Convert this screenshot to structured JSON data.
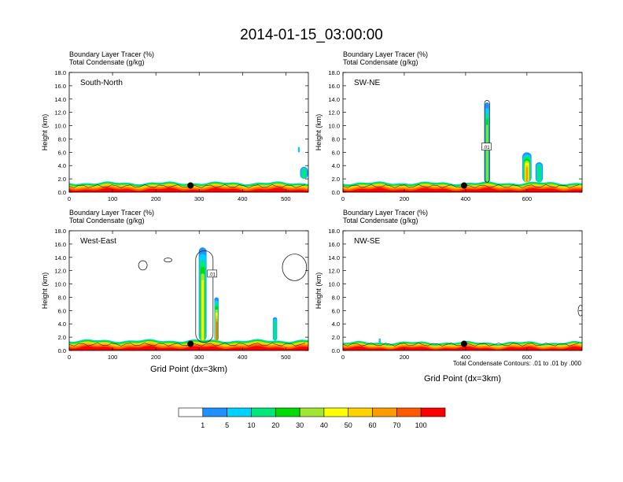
{
  "title": "2014-01-15_03:00:00",
  "panel_header_line1": "Boundary Layer Tracer   (%)",
  "panel_header_line2": "Total Condensate   (g/kg)",
  "ylabel": "Height (km)",
  "xlabel": "Grid Point (dx=3km)",
  "contour_note": "Total Condensate Contours: .01 to .01 by .000",
  "contour_label": ".01",
  "colors": [
    "#ffffff",
    "#1e90ff",
    "#00d2ff",
    "#00e87c",
    "#00dc00",
    "#a0e632",
    "#ffff00",
    "#ffd200",
    "#ff9b00",
    "#ff5a00",
    "#ff0000"
  ],
  "colorbar_labels": [
    "1",
    "5",
    "10",
    "20",
    "30",
    "40",
    "50",
    "60",
    "70",
    "100"
  ],
  "chart_data": [
    {
      "type": "heatmap",
      "name": "South-North",
      "xlim": [
        0,
        552
      ],
      "xticks": [
        0,
        100,
        200,
        300,
        400,
        500
      ],
      "ylim": [
        0,
        18
      ],
      "yticks": [
        "0.0",
        "2.0",
        "4.0",
        "6.0",
        "8.0",
        "10.0",
        "12.0",
        "14.0",
        "16.0",
        "18.0"
      ],
      "marker_x": 280,
      "pbl_top_km": 1.4,
      "plumes": [
        {
          "x": 542,
          "base": 2.0,
          "top": 3.8,
          "width": 18,
          "level": 3
        },
        {
          "x": 530,
          "base": 6.0,
          "top": 6.8,
          "width": 4,
          "level": 2
        }
      ],
      "contours": []
    },
    {
      "type": "heatmap",
      "name": "SW-NE",
      "xlim": [
        0,
        780
      ],
      "xticks": [
        0,
        200,
        400,
        600
      ],
      "ylim": [
        0,
        18
      ],
      "yticks": [
        "0.0",
        "2.0",
        "4.0",
        "6.0",
        "8.0",
        "10.0",
        "12.0",
        "14.0",
        "16.0",
        "18.0"
      ],
      "marker_x": 395,
      "pbl_top_km": 1.4,
      "plumes": [
        {
          "x": 470,
          "base": 1.5,
          "top": 13.5,
          "width": 14,
          "level": 5
        },
        {
          "x": 600,
          "base": 1.5,
          "top": 6.0,
          "width": 30,
          "level": 8
        },
        {
          "x": 640,
          "base": 1.5,
          "top": 4.5,
          "width": 24,
          "level": 3
        }
      ],
      "contours": [
        {
          "x": 470,
          "base": 1.5,
          "top": 13.8,
          "width": 16
        }
      ],
      "label_at": {
        "x": 468,
        "y": 6.8
      }
    },
    {
      "type": "heatmap",
      "name": "West-East",
      "xlim": [
        0,
        552
      ],
      "xticks": [
        0,
        100,
        200,
        300,
        400,
        500
      ],
      "ylim": [
        0,
        18
      ],
      "yticks": [
        "0.0",
        "2.0",
        "4.0",
        "6.0",
        "8.0",
        "10.0",
        "12.0",
        "14.0",
        "16.0",
        "18.0"
      ],
      "marker_x": 280,
      "pbl_top_km": 1.5,
      "plumes": [
        {
          "x": 308,
          "base": 1.5,
          "top": 15.5,
          "width": 18,
          "level": 6
        },
        {
          "x": 340,
          "base": 1.5,
          "top": 8.0,
          "width": 10,
          "level": 9
        },
        {
          "x": 475,
          "base": 1.5,
          "top": 5.0,
          "width": 10,
          "level": 3
        }
      ],
      "contours": [
        {
          "x": 312,
          "base": 1.2,
          "top": 15.0,
          "width": 40
        }
      ],
      "label_at": {
        "x": 330,
        "y": 11.5
      },
      "clouds": [
        {
          "x": 170,
          "y": 12.8,
          "rx": 10,
          "ry": 0.7
        },
        {
          "x": 228,
          "y": 13.6,
          "rx": 9,
          "ry": 0.3
        },
        {
          "x": 520,
          "y": 12.5,
          "rx": 28,
          "ry": 2.0
        }
      ]
    },
    {
      "type": "heatmap",
      "name": "NW-SE",
      "xlim": [
        0,
        780
      ],
      "xticks": [
        0,
        200,
        400,
        600
      ],
      "ylim": [
        0,
        18
      ],
      "yticks": [
        "0.0",
        "2.0",
        "4.0",
        "6.0",
        "8.0",
        "10.0",
        "12.0",
        "14.0",
        "16.0",
        "18.0"
      ],
      "marker_x": 395,
      "pbl_top_km": 1.2,
      "plumes": [
        {
          "x": 120,
          "base": 1.0,
          "top": 1.8,
          "width": 6,
          "level": 2
        }
      ],
      "contours": [],
      "clouds": [
        {
          "x": 775,
          "y": 6.0,
          "rx": 8,
          "ry": 0.8
        }
      ]
    }
  ]
}
